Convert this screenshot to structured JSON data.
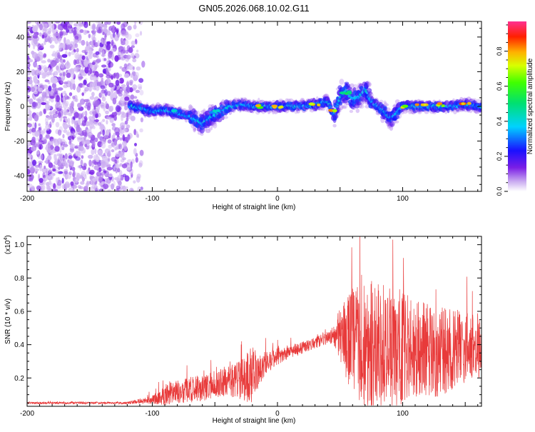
{
  "title": "GN05.2026.068.10.02.G11",
  "chart_data": [
    {
      "type": "heatmap",
      "xlabel": "Height of straight line (km)",
      "ylabel": "Frequency (Hz)",
      "xlim": [
        -200,
        163
      ],
      "ylim": [
        -49,
        49
      ],
      "xticks": [
        -200,
        -100,
        0,
        100
      ],
      "yticks": [
        -40,
        -20,
        0,
        20,
        40
      ],
      "colorbar": {
        "label": "Normalized spectral amplitude",
        "range": [
          0,
          0.97
        ],
        "ticks": [
          0,
          0.2,
          0.4,
          0.6,
          0.8
        ]
      },
      "noise_region_x": [
        -200,
        -105
      ],
      "ridge": [
        [
          -118,
          0
        ],
        [
          -110,
          -1
        ],
        [
          -100,
          -3
        ],
        [
          -90,
          -2
        ],
        [
          -80,
          -4
        ],
        [
          -70,
          -6
        ],
        [
          -60,
          -10
        ],
        [
          -52,
          -6
        ],
        [
          -45,
          -3
        ],
        [
          -38,
          0
        ],
        [
          -30,
          1
        ],
        [
          -20,
          0
        ],
        [
          -10,
          0
        ],
        [
          0,
          0
        ],
        [
          10,
          0
        ],
        [
          20,
          0
        ],
        [
          30,
          1
        ],
        [
          35,
          2
        ],
        [
          40,
          3
        ],
        [
          45,
          -5
        ],
        [
          50,
          5
        ],
        [
          55,
          9
        ],
        [
          60,
          4
        ],
        [
          65,
          5
        ],
        [
          70,
          10
        ],
        [
          75,
          3
        ],
        [
          80,
          0
        ],
        [
          85,
          -3
        ],
        [
          90,
          -7
        ],
        [
          95,
          -4
        ],
        [
          100,
          0
        ],
        [
          110,
          0
        ],
        [
          120,
          0
        ],
        [
          130,
          0
        ],
        [
          140,
          0
        ],
        [
          150,
          1
        ],
        [
          163,
          0
        ]
      ],
      "ridge_peaks": [
        {
          "x": -80,
          "y": -2,
          "value": 0.45
        },
        {
          "x": -50,
          "y": -3,
          "value": 0.5
        },
        {
          "x": -15,
          "y": 0,
          "value": 0.82
        },
        {
          "x": 0,
          "y": 0,
          "value": 0.9
        },
        {
          "x": 30,
          "y": 1,
          "value": 0.85
        },
        {
          "x": 45,
          "y": -3,
          "value": 0.88
        },
        {
          "x": 55,
          "y": 8,
          "value": 0.55
        },
        {
          "x": 100,
          "y": 0,
          "value": 0.85
        },
        {
          "x": 115,
          "y": 1,
          "value": 0.9
        },
        {
          "x": 130,
          "y": 1,
          "value": 0.88
        },
        {
          "x": 150,
          "y": 1,
          "value": 0.92
        }
      ]
    },
    {
      "type": "line",
      "xlabel": "Height of straight line (km)",
      "ylabel": "SNR (10 * v/v)",
      "yscale_label": "(x10",
      "yscale_exp": "4",
      "yscale_close": ")",
      "xlim": [
        -200,
        163
      ],
      "ylim": [
        0.03,
        1.05
      ],
      "xticks": [
        -200,
        -100,
        0,
        100
      ],
      "yticks": [
        0.2,
        0.4,
        0.6,
        0.8,
        1.0
      ],
      "ytick_labels": [
        "0.2",
        "0.4",
        "0.6",
        "0.8",
        "1.0"
      ],
      "color": "#e83a3a",
      "envelope_x": [
        -200,
        -120,
        -100,
        -90,
        -80,
        -70,
        -60,
        -50,
        -40,
        -30,
        -25,
        -20,
        -15,
        -10,
        0,
        10,
        20,
        30,
        40,
        45,
        50,
        60,
        70,
        80,
        90,
        100,
        110,
        120,
        130,
        140,
        150,
        163
      ],
      "envelope_base": [
        0.05,
        0.05,
        0.07,
        0.1,
        0.12,
        0.13,
        0.14,
        0.16,
        0.18,
        0.19,
        0.2,
        0.22,
        0.24,
        0.28,
        0.33,
        0.36,
        0.38,
        0.41,
        0.44,
        0.46,
        0.44,
        0.42,
        0.4,
        0.4,
        0.38,
        0.38,
        0.38,
        0.38,
        0.36,
        0.38,
        0.38,
        0.4
      ],
      "envelope_amp": [
        0.01,
        0.01,
        0.04,
        0.1,
        0.11,
        0.12,
        0.12,
        0.13,
        0.14,
        0.18,
        0.22,
        0.28,
        0.14,
        0.12,
        0.08,
        0.06,
        0.06,
        0.05,
        0.06,
        0.08,
        0.3,
        0.5,
        0.6,
        0.6,
        0.55,
        0.55,
        0.45,
        0.45,
        0.42,
        0.38,
        0.32,
        0.3
      ]
    }
  ]
}
